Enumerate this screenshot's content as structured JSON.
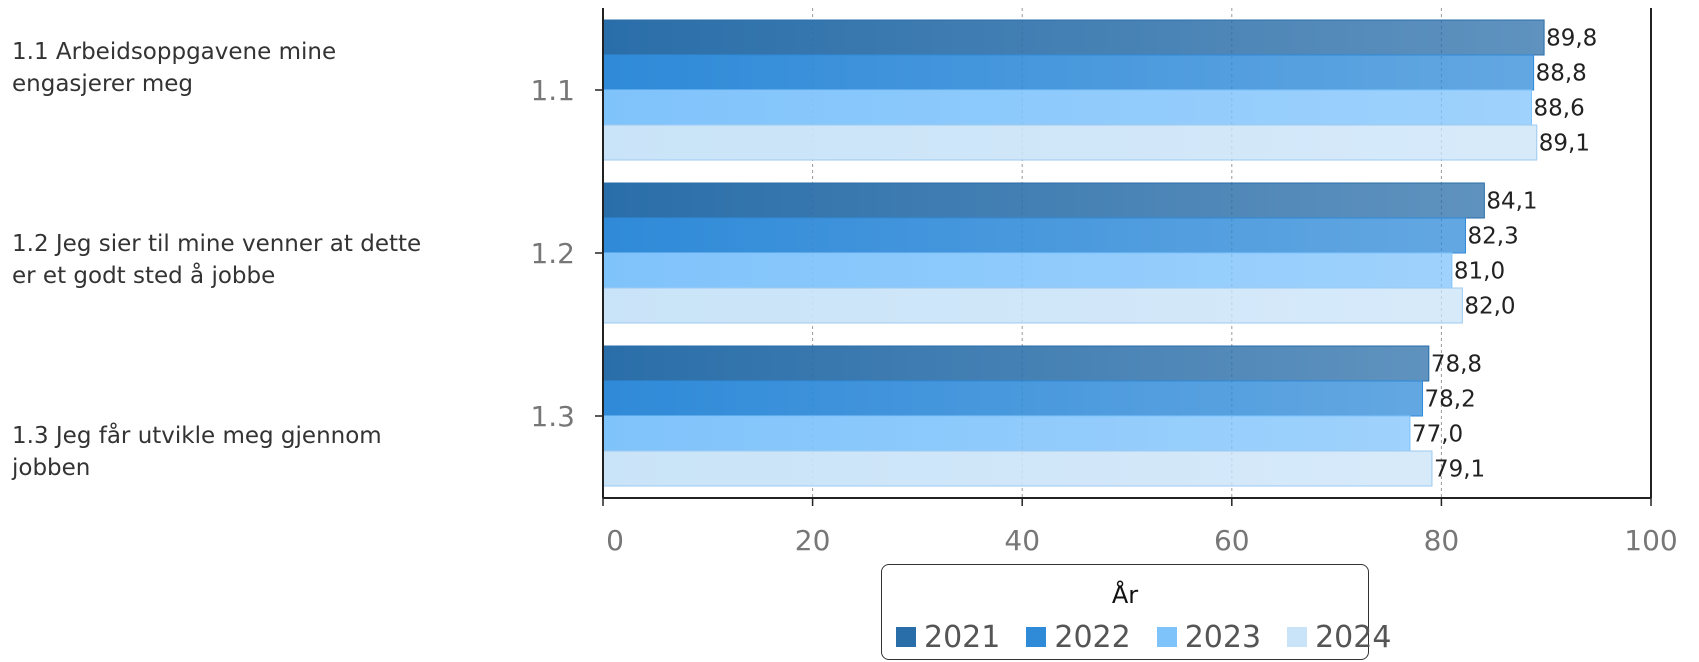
{
  "questions": [
    {
      "code": "1.1",
      "text": "1.1 Arbeidsoppgavene mine engasjerer meg"
    },
    {
      "code": "1.2",
      "text": "1.2 Jeg sier til mine venner at dette er et godt sted å jobbe"
    },
    {
      "code": "1.3",
      "text": "1.3 Jeg får utvikle meg gjennom jobben"
    }
  ],
  "chart_data": {
    "type": "bar",
    "orientation": "horizontal",
    "categories": [
      "1.1",
      "1.2",
      "1.3"
    ],
    "series": [
      {
        "name": "2021",
        "values": [
          89.8,
          84.1,
          78.8
        ],
        "labels": [
          "89,8",
          "84,1",
          "78,8"
        ],
        "color": "#2a6ea9"
      },
      {
        "name": "2022",
        "values": [
          88.8,
          82.3,
          78.2
        ],
        "labels": [
          "88,8",
          "82,3",
          "78,2"
        ],
        "color": "#2f8ad8"
      },
      {
        "name": "2023",
        "values": [
          88.6,
          81.0,
          77.0
        ],
        "labels": [
          "88,6",
          "81,0",
          "77,0"
        ],
        "color": "#7fc3fb"
      },
      {
        "name": "2024",
        "values": [
          89.1,
          82.0,
          79.1
        ],
        "labels": [
          "89,1",
          "82,0",
          "79,1"
        ],
        "color": "#c9e3f8"
      }
    ],
    "xlim": [
      0,
      100
    ],
    "xticks": [
      "0",
      "20",
      "40",
      "60",
      "80",
      "100"
    ],
    "grid": "vertical dotted",
    "legend": {
      "title": "År",
      "position": "bottom"
    }
  }
}
